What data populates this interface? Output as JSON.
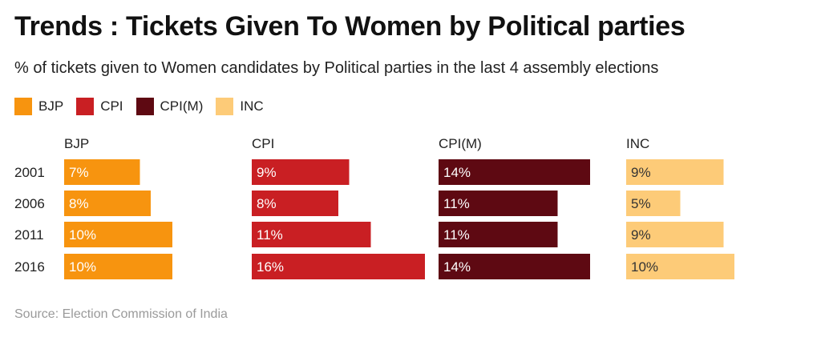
{
  "title": "Trends : Tickets Given To Women by Political parties",
  "subtitle": "% of tickets given to Women candidates by Political parties in the last 4 assembly elections",
  "source": "Source: Election Commission of India",
  "chart_data": {
    "type": "bar",
    "orientation": "horizontal",
    "layout": "small-multiples",
    "title": "Trends : Tickets Given To Women by Political parties",
    "subtitle": "% of tickets given to Women candidates by Political parties in the last 4 assembly elections",
    "categories": [
      "2001",
      "2006",
      "2011",
      "2016"
    ],
    "unit": "%",
    "legend_position": "top-left",
    "grid": false,
    "series": [
      {
        "name": "BJP",
        "color": "#f7940f",
        "label_color": "#ffffff",
        "values": [
          7,
          8,
          10,
          10
        ]
      },
      {
        "name": "CPI",
        "color": "#c91f23",
        "label_color": "#ffffff",
        "values": [
          9,
          8,
          11,
          16
        ]
      },
      {
        "name": "CPI(M)",
        "color": "#5e0912",
        "label_color": "#ffffff",
        "values": [
          14,
          11,
          11,
          14
        ]
      },
      {
        "name": "INC",
        "color": "#fdcb78",
        "label_color": "#333333",
        "values": [
          9,
          5,
          9,
          10
        ]
      }
    ]
  }
}
